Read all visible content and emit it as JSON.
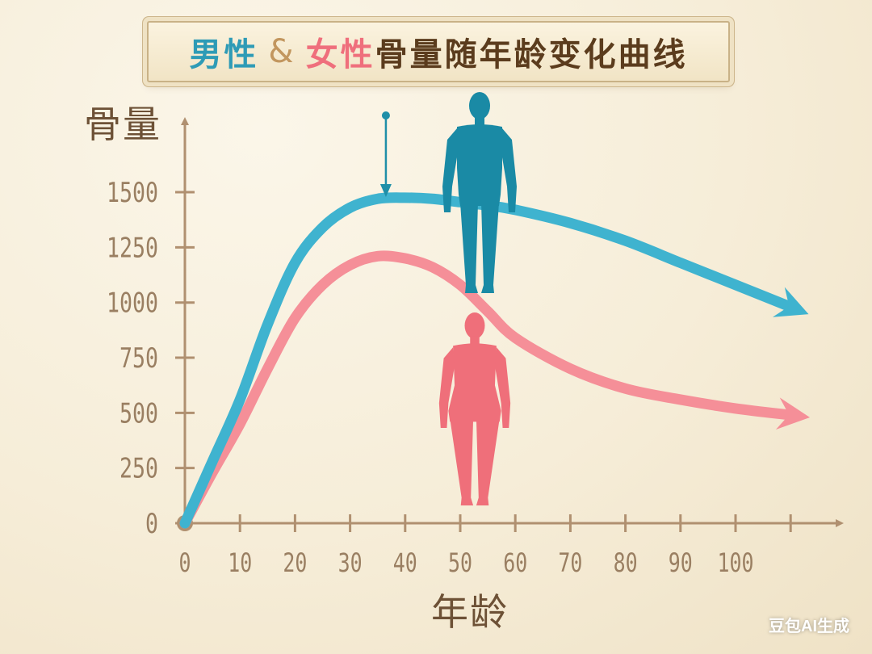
{
  "title": {
    "male": "男性",
    "amp": "&",
    "female": "女性",
    "rest": "骨量随年龄变化曲线"
  },
  "watermark": "豆包AI生成",
  "colors": {
    "male": "#3fb3cf",
    "female": "#f58f98",
    "axis": "#b09070",
    "text": "#6d5136"
  },
  "chart_data": {
    "type": "line",
    "title": "男性 & 女性骨量随年龄变化曲线",
    "xlabel": "年龄",
    "ylabel": "骨量",
    "xlim": [
      0,
      110
    ],
    "ylim": [
      0,
      1500
    ],
    "x_ticks": [
      0,
      10,
      20,
      30,
      40,
      50,
      60,
      70,
      80,
      90,
      100
    ],
    "y_ticks": [
      0,
      250,
      500,
      750,
      1000,
      1250,
      1500
    ],
    "grid": false,
    "annotation": "arrow pointing down at the peak of the male curve (about age 37)",
    "series": [
      {
        "color": "#3fb3cf",
        "x": [
          0,
          5,
          10,
          15,
          20,
          25,
          30,
          35,
          40,
          45,
          50,
          55,
          60,
          70,
          80,
          90,
          100,
          110
        ],
        "y": [
          0,
          280,
          560,
          900,
          1180,
          1340,
          1430,
          1470,
          1475,
          1470,
          1455,
          1440,
          1420,
          1360,
          1280,
          1180,
          1080,
          980
        ]
      },
      {
        "color": "#f58f98",
        "x": [
          0,
          5,
          10,
          15,
          20,
          25,
          30,
          35,
          40,
          45,
          50,
          55,
          60,
          70,
          80,
          90,
          100,
          110
        ],
        "y": [
          0,
          230,
          450,
          700,
          930,
          1080,
          1170,
          1210,
          1200,
          1160,
          1080,
          960,
          840,
          700,
          610,
          560,
          520,
          490
        ]
      }
    ]
  }
}
